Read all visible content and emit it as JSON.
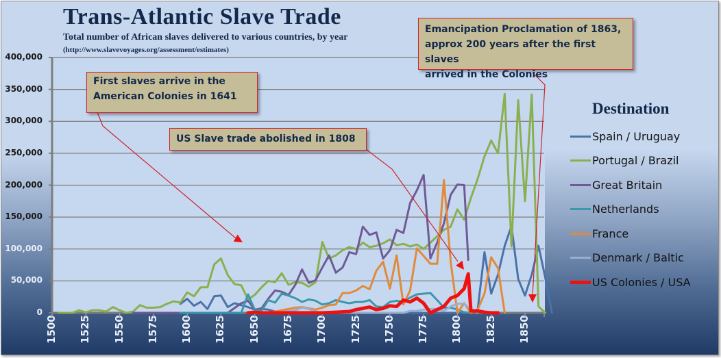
{
  "chart_data": {
    "type": "line",
    "title": "Trans-Atlantic Slave Trade",
    "subtitle": "Total number of African slaves delivered to various countries, by year",
    "source": "(http://www.slavevoyages.org/assessment/estimates)",
    "xlabel": "",
    "ylabel": "",
    "ylim": [
      0,
      400000
    ],
    "yticks": [
      "0",
      "50,000",
      "100,000",
      "150,000",
      "200,000",
      "250,000",
      "300,000",
      "350,000",
      "400,000"
    ],
    "xticks": [
      "1500",
      "1525",
      "1550",
      "1575",
      "1600",
      "1625",
      "1650",
      "1675",
      "1700",
      "1725",
      "1750",
      "1775",
      "1800",
      "1825",
      "1850"
    ],
    "grid": true,
    "legend_title": "Destination",
    "legend_position": "right",
    "series": [
      {
        "name": "Spain / Uruguay",
        "color": "#4a72a8",
        "width": 3,
        "points": [
          [
            1595,
            14000
          ],
          [
            1600,
            22000
          ],
          [
            1605,
            11000
          ],
          [
            1610,
            17000
          ],
          [
            1615,
            6000
          ],
          [
            1620,
            26000
          ],
          [
            1625,
            27000
          ],
          [
            1630,
            9000
          ],
          [
            1635,
            15000
          ],
          [
            1640,
            12000
          ],
          [
            1645,
            9000
          ],
          [
            1650,
            5000
          ],
          [
            1655,
            6000
          ],
          [
            1660,
            5000
          ],
          [
            1665,
            2000
          ],
          [
            1670,
            0
          ],
          [
            1810,
            0
          ],
          [
            1815,
            5000
          ],
          [
            1820,
            95000
          ],
          [
            1825,
            30000
          ],
          [
            1830,
            60000
          ],
          [
            1835,
            105000
          ],
          [
            1840,
            136000
          ],
          [
            1845,
            53000
          ],
          [
            1850,
            27000
          ],
          [
            1855,
            60000
          ],
          [
            1860,
            105000
          ],
          [
            1865,
            55000
          ],
          [
            1870,
            0
          ]
        ]
      },
      {
        "name": "Portugal / Brazil",
        "color": "#8aaf4e",
        "width": 3,
        "points": [
          [
            1505,
            0
          ],
          [
            1515,
            0
          ],
          [
            1520,
            4000
          ],
          [
            1525,
            1000
          ],
          [
            1530,
            4000
          ],
          [
            1535,
            4000
          ],
          [
            1540,
            2000
          ],
          [
            1545,
            9000
          ],
          [
            1550,
            4000
          ],
          [
            1555,
            0
          ],
          [
            1560,
            2000
          ],
          [
            1565,
            12000
          ],
          [
            1570,
            8000
          ],
          [
            1575,
            8000
          ],
          [
            1580,
            9000
          ],
          [
            1585,
            14000
          ],
          [
            1590,
            18000
          ],
          [
            1595,
            16000
          ],
          [
            1600,
            32000
          ],
          [
            1605,
            26000
          ],
          [
            1610,
            40000
          ],
          [
            1615,
            40000
          ],
          [
            1620,
            76000
          ],
          [
            1625,
            85000
          ],
          [
            1630,
            59000
          ],
          [
            1635,
            45000
          ],
          [
            1640,
            43000
          ],
          [
            1645,
            21000
          ],
          [
            1650,
            28000
          ],
          [
            1655,
            40000
          ],
          [
            1660,
            50000
          ],
          [
            1665,
            48000
          ],
          [
            1670,
            62000
          ],
          [
            1675,
            44000
          ],
          [
            1680,
            48000
          ],
          [
            1685,
            47000
          ],
          [
            1690,
            41000
          ],
          [
            1695,
            48000
          ],
          [
            1700,
            111000
          ],
          [
            1705,
            85000
          ],
          [
            1710,
            90000
          ],
          [
            1715,
            98000
          ],
          [
            1720,
            103000
          ],
          [
            1725,
            100000
          ],
          [
            1730,
            110000
          ],
          [
            1735,
            103000
          ],
          [
            1740,
            105000
          ],
          [
            1745,
            109000
          ],
          [
            1750,
            115000
          ],
          [
            1755,
            106000
          ],
          [
            1760,
            108000
          ],
          [
            1765,
            104000
          ],
          [
            1770,
            107000
          ],
          [
            1775,
            100000
          ],
          [
            1780,
            110000
          ],
          [
            1785,
            120000
          ],
          [
            1790,
            130000
          ],
          [
            1795,
            135000
          ],
          [
            1800,
            162000
          ],
          [
            1805,
            146000
          ],
          [
            1810,
            180000
          ],
          [
            1815,
            210000
          ],
          [
            1820,
            245000
          ],
          [
            1825,
            270000
          ],
          [
            1830,
            250000
          ],
          [
            1835,
            343000
          ],
          [
            1840,
            104000
          ],
          [
            1845,
            333000
          ],
          [
            1850,
            175000
          ],
          [
            1855,
            342000
          ],
          [
            1860,
            10000
          ],
          [
            1865,
            0
          ]
        ]
      },
      {
        "name": "Great Britain",
        "color": "#6e5a96",
        "width": 3,
        "points": [
          [
            1560,
            0
          ],
          [
            1570,
            0
          ],
          [
            1625,
            0
          ],
          [
            1630,
            0
          ],
          [
            1640,
            15000
          ],
          [
            1645,
            19000
          ],
          [
            1650,
            5000
          ],
          [
            1655,
            7000
          ],
          [
            1660,
            22000
          ],
          [
            1665,
            35000
          ],
          [
            1670,
            33000
          ],
          [
            1675,
            28000
          ],
          [
            1680,
            44000
          ],
          [
            1685,
            68000
          ],
          [
            1690,
            47000
          ],
          [
            1695,
            51000
          ],
          [
            1700,
            71000
          ],
          [
            1705,
            90000
          ],
          [
            1710,
            63000
          ],
          [
            1715,
            71000
          ],
          [
            1720,
            95000
          ],
          [
            1725,
            92000
          ],
          [
            1730,
            135000
          ],
          [
            1735,
            122000
          ],
          [
            1740,
            126000
          ],
          [
            1745,
            85000
          ],
          [
            1750,
            98000
          ],
          [
            1755,
            130000
          ],
          [
            1760,
            125000
          ],
          [
            1765,
            172000
          ],
          [
            1770,
            192000
          ],
          [
            1775,
            216000
          ],
          [
            1780,
            85000
          ],
          [
            1785,
            110000
          ],
          [
            1790,
            140000
          ],
          [
            1795,
            185000
          ],
          [
            1800,
            201000
          ],
          [
            1805,
            200000
          ],
          [
            1808,
            83000
          ]
        ]
      },
      {
        "name": "Netherlands",
        "color": "#3c97aa",
        "width": 3,
        "points": [
          [
            1595,
            0
          ],
          [
            1610,
            0
          ],
          [
            1640,
            0
          ],
          [
            1645,
            29000
          ],
          [
            1650,
            5000
          ],
          [
            1655,
            3000
          ],
          [
            1660,
            20000
          ],
          [
            1665,
            16000
          ],
          [
            1670,
            30000
          ],
          [
            1675,
            27000
          ],
          [
            1680,
            23000
          ],
          [
            1685,
            17000
          ],
          [
            1690,
            21000
          ],
          [
            1695,
            19000
          ],
          [
            1700,
            13000
          ],
          [
            1705,
            15000
          ],
          [
            1710,
            20000
          ],
          [
            1715,
            17000
          ],
          [
            1720,
            15000
          ],
          [
            1725,
            17000
          ],
          [
            1730,
            17000
          ],
          [
            1735,
            20000
          ],
          [
            1740,
            10000
          ],
          [
            1745,
            9000
          ],
          [
            1750,
            17000
          ],
          [
            1755,
            19000
          ],
          [
            1760,
            17000
          ],
          [
            1765,
            24000
          ],
          [
            1770,
            29000
          ],
          [
            1775,
            30000
          ],
          [
            1780,
            31000
          ],
          [
            1785,
            20000
          ],
          [
            1790,
            8000
          ],
          [
            1795,
            8000
          ],
          [
            1800,
            5000
          ],
          [
            1805,
            1000
          ],
          [
            1810,
            0
          ]
        ]
      },
      {
        "name": "France",
        "color": "#e08a3a",
        "width": 3,
        "points": [
          [
            1645,
            0
          ],
          [
            1660,
            0
          ],
          [
            1665,
            2000
          ],
          [
            1670,
            4000
          ],
          [
            1675,
            6000
          ],
          [
            1680,
            8000
          ],
          [
            1685,
            9000
          ],
          [
            1690,
            7000
          ],
          [
            1695,
            5000
          ],
          [
            1700,
            8000
          ],
          [
            1705,
            12000
          ],
          [
            1710,
            13000
          ],
          [
            1715,
            31000
          ],
          [
            1720,
            31000
          ],
          [
            1725,
            35000
          ],
          [
            1730,
            42000
          ],
          [
            1735,
            37000
          ],
          [
            1740,
            66000
          ],
          [
            1745,
            80000
          ],
          [
            1750,
            38000
          ],
          [
            1755,
            90000
          ],
          [
            1760,
            13000
          ],
          [
            1765,
            35000
          ],
          [
            1770,
            101000
          ],
          [
            1775,
            89000
          ],
          [
            1780,
            77000
          ],
          [
            1785,
            77000
          ],
          [
            1790,
            208000
          ],
          [
            1795,
            80000
          ],
          [
            1800,
            0
          ],
          [
            1805,
            15000
          ],
          [
            1810,
            0
          ],
          [
            1815,
            5000
          ],
          [
            1820,
            30000
          ],
          [
            1825,
            87000
          ],
          [
            1830,
            70000
          ],
          [
            1835,
            0
          ]
        ]
      },
      {
        "name": "Denmark / Baltic",
        "color": "#9aaed0",
        "width": 3,
        "points": [
          [
            1665,
            0
          ],
          [
            1680,
            4000
          ],
          [
            1685,
            8000
          ],
          [
            1690,
            6000
          ],
          [
            1695,
            2000
          ],
          [
            1700,
            0
          ],
          [
            1760,
            0
          ],
          [
            1765,
            3000
          ],
          [
            1770,
            3000
          ],
          [
            1775,
            5000
          ],
          [
            1780,
            6000
          ],
          [
            1785,
            6000
          ],
          [
            1790,
            3000
          ],
          [
            1795,
            10000
          ],
          [
            1800,
            14000
          ],
          [
            1805,
            14000
          ],
          [
            1810,
            6000
          ],
          [
            1815,
            0
          ]
        ]
      },
      {
        "name": "US Colonies / USA",
        "color": "#ee1111",
        "width": 5,
        "points": [
          [
            1645,
            0
          ],
          [
            1650,
            1000
          ],
          [
            1655,
            0
          ],
          [
            1680,
            0
          ],
          [
            1690,
            0
          ],
          [
            1700,
            0
          ],
          [
            1710,
            1000
          ],
          [
            1720,
            2000
          ],
          [
            1725,
            5000
          ],
          [
            1730,
            7000
          ],
          [
            1735,
            9000
          ],
          [
            1740,
            5000
          ],
          [
            1745,
            7000
          ],
          [
            1750,
            11000
          ],
          [
            1755,
            10000
          ],
          [
            1760,
            20000
          ],
          [
            1765,
            17000
          ],
          [
            1770,
            23000
          ],
          [
            1775,
            15000
          ],
          [
            1780,
            0
          ],
          [
            1785,
            5000
          ],
          [
            1790,
            10000
          ],
          [
            1795,
            23000
          ],
          [
            1800,
            27000
          ],
          [
            1805,
            38000
          ],
          [
            1808,
            61000
          ],
          [
            1810,
            3000
          ],
          [
            1815,
            3000
          ],
          [
            1820,
            1000
          ],
          [
            1825,
            0
          ],
          [
            1830,
            0
          ]
        ]
      }
    ],
    "annotations": [
      {
        "text": "First slaves arrive in the American Colonies in 1641",
        "target_year": 1641
      },
      {
        "text": "US Slave trade abolished in 1808",
        "target_year": 1808
      },
      {
        "text": "Emancipation Proclamation of 1863, approx 200 years after the first slaves arrived in the Colonies",
        "target_year": 1863
      }
    ]
  },
  "callouts": {
    "first_slaves": "First slaves arrive in the\nAmerican Colonies in 1641",
    "abolished": "US Slave trade abolished in 1808",
    "emancipation": "Emancipation Proclamation of 1863,\napprox 200 years after the first slaves\narrived in the Colonies"
  }
}
